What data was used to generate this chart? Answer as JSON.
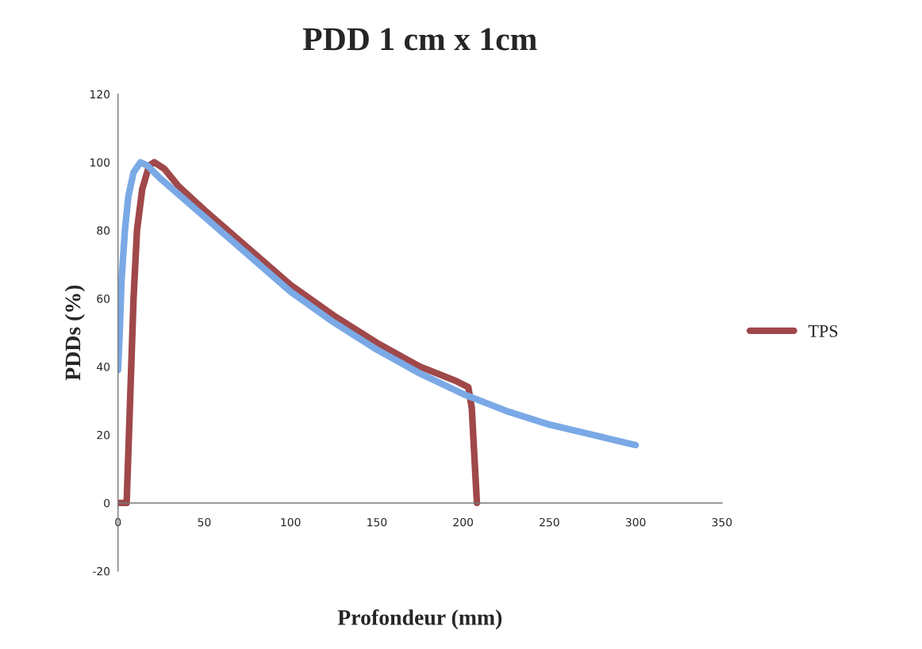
{
  "chart_data": {
    "type": "line",
    "title": "PDD 1 cm x 1cm",
    "xlabel": "Profondeur (mm)",
    "ylabel": "PDDs (%)",
    "xlim": [
      0,
      350
    ],
    "xticks": [
      0,
      50,
      100,
      150,
      200,
      250,
      300,
      350
    ],
    "ylim": [
      -20,
      120
    ],
    "yticks": [
      -20,
      0,
      20,
      40,
      60,
      80,
      100,
      120
    ],
    "grid": false,
    "legend": "right",
    "marker": "none",
    "line_style": "solid",
    "series": [
      {
        "name": "TPS",
        "color": "#a0484a",
        "x": [
          0,
          5,
          7,
          9,
          11,
          14,
          18,
          21,
          27,
          35,
          50,
          75,
          100,
          125,
          150,
          175,
          195,
          203,
          205,
          208
        ],
        "values": [
          0,
          0,
          30,
          60,
          80,
          92,
          99,
          100,
          98,
          93,
          86,
          75,
          64,
          55,
          47,
          40,
          36,
          34,
          28,
          0
        ]
      },
      {
        "color": "#7aa9e6",
        "x": [
          0,
          1,
          2,
          4,
          6,
          9,
          13,
          17,
          25,
          50,
          75,
          100,
          125,
          150,
          175,
          200,
          225,
          250,
          275,
          300
        ],
        "values": [
          39,
          50,
          65,
          80,
          90,
          97,
          100,
          99,
          95,
          84,
          73,
          62,
          53,
          45,
          38,
          32,
          27,
          23,
          20,
          17
        ]
      }
    ]
  }
}
